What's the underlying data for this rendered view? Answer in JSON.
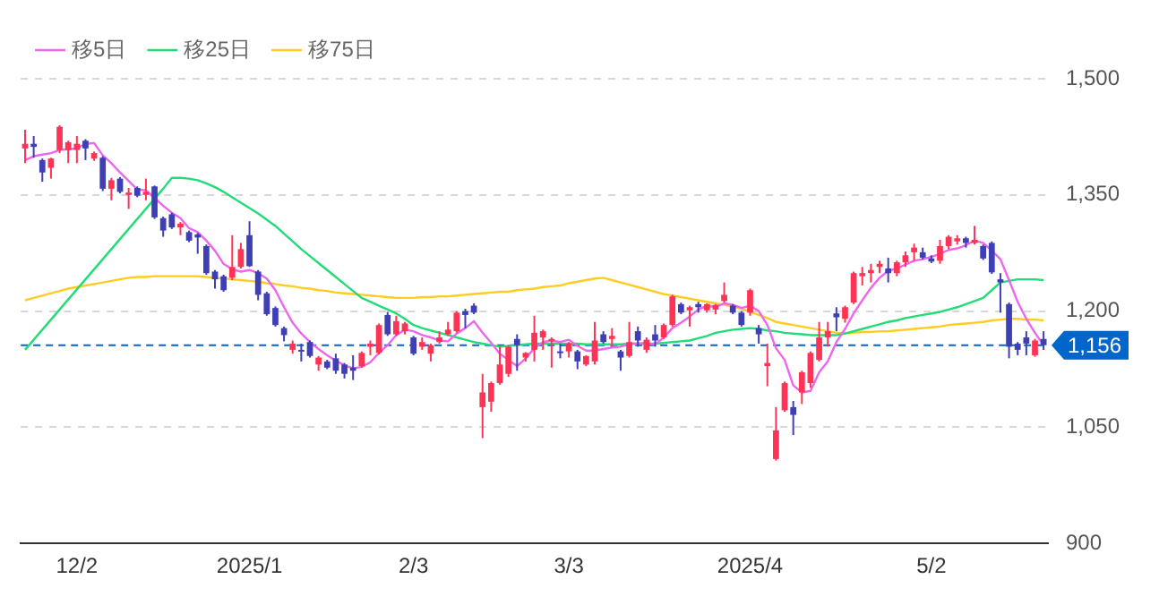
{
  "chart_data": {
    "type": "candlestick",
    "categories": [
      null,
      null,
      null,
      null,
      null,
      null,
      "12/2",
      null,
      null,
      null,
      null,
      null,
      null,
      null,
      null,
      null,
      null,
      null,
      null,
      null,
      null,
      null,
      null,
      null,
      null,
      null,
      "2025/1",
      null,
      null,
      null,
      null,
      null,
      null,
      null,
      null,
      null,
      null,
      null,
      null,
      null,
      null,
      null,
      null,
      null,
      null,
      "2/3",
      null,
      null,
      null,
      null,
      null,
      null,
      null,
      null,
      null,
      null,
      null,
      null,
      null,
      null,
      null,
      null,
      null,
      "3/3",
      null,
      null,
      null,
      null,
      null,
      null,
      null,
      null,
      null,
      null,
      null,
      null,
      null,
      null,
      null,
      null,
      null,
      null,
      null,
      null,
      "2025/4",
      null,
      null,
      null,
      null,
      null,
      null,
      null,
      null,
      null,
      null,
      null,
      null,
      null,
      null,
      null,
      null,
      null,
      null,
      null,
      null,
      "5/2",
      null,
      null,
      null,
      null,
      null,
      null,
      null,
      null,
      null,
      null,
      null,
      null,
      null
    ],
    "ohlc": [
      [
        1410,
        1434,
        1391,
        1416
      ],
      [
        1416,
        1426,
        1398,
        1412
      ],
      [
        1395,
        1397,
        1367,
        1379
      ],
      [
        1385,
        1398,
        1371,
        1397
      ],
      [
        1408,
        1440,
        1404,
        1438
      ],
      [
        1408,
        1420,
        1391,
        1418
      ],
      [
        1408,
        1426,
        1391,
        1416
      ],
      [
        1420,
        1422,
        1395,
        1410
      ],
      [
        1397,
        1406,
        1394,
        1404
      ],
      [
        1398,
        1400,
        1355,
        1358
      ],
      [
        1358,
        1372,
        1343,
        1369
      ],
      [
        1371,
        1373,
        1352,
        1354
      ],
      [
        1350,
        1359,
        1332,
        1353
      ],
      [
        1359,
        1361,
        1347,
        1349
      ],
      [
        1350,
        1371,
        1343,
        1354
      ],
      [
        1361,
        1362,
        1319,
        1321
      ],
      [
        1320,
        1322,
        1296,
        1304
      ],
      [
        1325,
        1327,
        1306,
        1308
      ],
      [
        1308,
        1315,
        1298,
        1313
      ],
      [
        1302,
        1304,
        1289,
        1291
      ],
      [
        1299,
        1301,
        1274,
        1295
      ],
      [
        1284,
        1286,
        1247,
        1249
      ],
      [
        1251,
        1253,
        1229,
        1241
      ],
      [
        1245,
        1247,
        1225,
        1227
      ],
      [
        1243,
        1298,
        1240,
        1257
      ],
      [
        1257,
        1288,
        1255,
        1280
      ],
      [
        1298,
        1316,
        1257,
        1258
      ],
      [
        1251,
        1253,
        1214,
        1221
      ],
      [
        1223,
        1225,
        1194,
        1196
      ],
      [
        1204,
        1206,
        1180,
        1182
      ],
      [
        1178,
        1180,
        1161,
        1169
      ],
      [
        1150,
        1162,
        1145,
        1158
      ],
      [
        1150,
        1158,
        1135,
        1148
      ],
      [
        1160,
        1162,
        1140,
        1142
      ],
      [
        1131,
        1142,
        1123,
        1140
      ],
      [
        1135,
        1137,
        1125,
        1127
      ],
      [
        1139,
        1145,
        1119,
        1123
      ],
      [
        1131,
        1133,
        1113,
        1119
      ],
      [
        1127,
        1143,
        1111,
        1123
      ],
      [
        1129,
        1148,
        1127,
        1146
      ],
      [
        1154,
        1162,
        1143,
        1158
      ],
      [
        1146,
        1184,
        1144,
        1182
      ],
      [
        1195,
        1199,
        1168,
        1170
      ],
      [
        1170,
        1194,
        1168,
        1187
      ],
      [
        1174,
        1186,
        1170,
        1184
      ],
      [
        1166,
        1168,
        1143,
        1145
      ],
      [
        1154,
        1166,
        1150,
        1160
      ],
      [
        1145,
        1158,
        1135,
        1156
      ],
      [
        1160,
        1174,
        1158,
        1166
      ],
      [
        1170,
        1186,
        1168,
        1176
      ],
      [
        1174,
        1200,
        1172,
        1198
      ],
      [
        1200,
        1203,
        1178,
        1195
      ],
      [
        1207,
        1210,
        1196,
        1198
      ],
      [
        1076,
        1119,
        1036,
        1095
      ],
      [
        1083,
        1109,
        1070,
        1107
      ],
      [
        1107,
        1154,
        1105,
        1131
      ],
      [
        1119,
        1156,
        1115,
        1154
      ],
      [
        1164,
        1170,
        1123,
        1156
      ],
      [
        1140,
        1147,
        1135,
        1146
      ],
      [
        1150,
        1194,
        1135,
        1172
      ],
      [
        1166,
        1176,
        1150,
        1174
      ],
      [
        1162,
        1166,
        1127,
        1164
      ],
      [
        1148,
        1158,
        1139,
        1146
      ],
      [
        1148,
        1160,
        1140,
        1158
      ],
      [
        1148,
        1150,
        1125,
        1135
      ],
      [
        1131,
        1143,
        1129,
        1142
      ],
      [
        1135,
        1186,
        1131,
        1162
      ],
      [
        1170,
        1174,
        1158,
        1160
      ],
      [
        1164,
        1178,
        1154,
        1168
      ],
      [
        1148,
        1150,
        1123,
        1140
      ],
      [
        1142,
        1186,
        1140,
        1160
      ],
      [
        1174,
        1180,
        1154,
        1162
      ],
      [
        1150,
        1166,
        1146,
        1163
      ],
      [
        1170,
        1182,
        1154,
        1162
      ],
      [
        1166,
        1184,
        1164,
        1182
      ],
      [
        1182,
        1221,
        1180,
        1219
      ],
      [
        1209,
        1211,
        1196,
        1198
      ],
      [
        1201,
        1207,
        1180,
        1205
      ],
      [
        1209,
        1212,
        1198,
        1205
      ],
      [
        1201,
        1210,
        1198,
        1209
      ],
      [
        1202,
        1209,
        1196,
        1208
      ],
      [
        1213,
        1237,
        1211,
        1221
      ],
      [
        1207,
        1209,
        1196,
        1198
      ],
      [
        1198,
        1200,
        1180,
        1182
      ],
      [
        1198,
        1229,
        1194,
        1227
      ],
      [
        1178,
        1182,
        1158,
        1170
      ],
      [
        1129,
        1158,
        1103,
        1133
      ],
      [
        1009,
        1076,
        1007,
        1046
      ],
      [
        1072,
        1109,
        1070,
        1107
      ],
      [
        1076,
        1084,
        1040,
        1066
      ],
      [
        1095,
        1123,
        1080,
        1121
      ],
      [
        1107,
        1148,
        1101,
        1146
      ],
      [
        1137,
        1186,
        1135,
        1166
      ],
      [
        1166,
        1186,
        1154,
        1174
      ],
      [
        1197,
        1205,
        1174,
        1192
      ],
      [
        1190,
        1207,
        1185,
        1205
      ],
      [
        1211,
        1251,
        1209,
        1249
      ],
      [
        1245,
        1257,
        1233,
        1249
      ],
      [
        1249,
        1261,
        1237,
        1253
      ],
      [
        1257,
        1265,
        1249,
        1261
      ],
      [
        1255,
        1269,
        1237,
        1249
      ],
      [
        1249,
        1265,
        1245,
        1263
      ],
      [
        1263,
        1277,
        1257,
        1272
      ],
      [
        1276,
        1287,
        1265,
        1282
      ],
      [
        1276,
        1282,
        1267,
        1269
      ],
      [
        1268,
        1272,
        1262,
        1264
      ],
      [
        1265,
        1292,
        1261,
        1284
      ],
      [
        1284,
        1298,
        1280,
        1296
      ],
      [
        1290,
        1298,
        1286,
        1294
      ],
      [
        1294,
        1296,
        1282,
        1288
      ],
      [
        1288,
        1310,
        1286,
        1292
      ],
      [
        1284,
        1286,
        1266,
        1268
      ],
      [
        1288,
        1290,
        1248,
        1250
      ],
      [
        1241,
        1249,
        1198,
        1237
      ],
      [
        1209,
        1211,
        1139,
        1154
      ],
      [
        1158,
        1160,
        1143,
        1150
      ],
      [
        1166,
        1174,
        1143,
        1158
      ],
      [
        1143,
        1164,
        1141,
        1162
      ],
      [
        1164,
        1174,
        1150,
        1156
      ]
    ],
    "colors": [
      "#ff3355",
      "#3f3fb5",
      "#3f3fb5",
      "#ff3355",
      "#ff3355",
      "#ff3355",
      "#ff3355",
      "#3f3fb5",
      "#ff3355",
      "#3f3fb5",
      "#ff3355",
      "#3f3fb5",
      "#ff3355",
      "#3f3fb5",
      "#ff3355",
      "#3f3fb5",
      "#3f3fb5",
      "#3f3fb5",
      "#ff3355",
      "#3f3fb5",
      "#3f3fb5",
      "#3f3fb5",
      "#3f3fb5",
      "#3f3fb5",
      "#ff3355",
      "#ff3355",
      "#3f3fb5",
      "#3f3fb5",
      "#3f3fb5",
      "#3f3fb5",
      "#3f3fb5",
      "#ff3355",
      "#3f3fb5",
      "#3f3fb5",
      "#ff3355",
      "#3f3fb5",
      "#3f3fb5",
      "#3f3fb5",
      "#3f3fb5",
      "#ff3355",
      "#ff3355",
      "#ff3355",
      "#3f3fb5",
      "#ff3355",
      "#ff3355",
      "#3f3fb5",
      "#ff3355",
      "#ff3355",
      "#ff3355",
      "#ff3355",
      "#ff3355",
      "#3f3fb5",
      "#3f3fb5",
      "#ff3355",
      "#ff3355",
      "#ff3355",
      "#ff3355",
      "#3f3fb5",
      "#ff3355",
      "#ff3355",
      "#ff3355",
      "#ff3355",
      "#3f3fb5",
      "#ff3355",
      "#3f3fb5",
      "#ff3355",
      "#ff3355",
      "#3f3fb5",
      "#ff3355",
      "#3f3fb5",
      "#ff3355",
      "#3f3fb5",
      "#ff3355",
      "#3f3fb5",
      "#ff3355",
      "#ff3355",
      "#3f3fb5",
      "#ff3355",
      "#3f3fb5",
      "#ff3355",
      "#ff3355",
      "#ff3355",
      "#3f3fb5",
      "#3f3fb5",
      "#ff3355",
      "#3f3fb5",
      "#ff3355",
      "#ff3355",
      "#ff3355",
      "#3f3fb5",
      "#ff3355",
      "#ff3355",
      "#ff3355",
      "#ff3355",
      "#3f3fb5",
      "#ff3355",
      "#ff3355",
      "#ff3355",
      "#ff3355",
      "#ff3355",
      "#3f3fb5",
      "#ff3355",
      "#ff3355",
      "#ff3355",
      "#3f3fb5",
      "#3f3fb5",
      "#ff3355",
      "#ff3355",
      "#ff3355",
      "#3f3fb5",
      "#ff3355",
      "#3f3fb5",
      "#3f3fb5",
      "#3f3fb5",
      "#3f3fb5",
      "#3f3fb5",
      "#3f3fb5",
      "#ff3355",
      "#3f3fb5"
    ],
    "series": [
      {
        "type": "line",
        "name": "移5日",
        "color": "#ee66ee",
        "values": [
          1395,
          1400,
          1402,
          1404,
          1408,
          1409,
          1410,
          1416,
          1417,
          1401,
          1391,
          1379,
          1368,
          1357,
          1356,
          1346,
          1336,
          1327,
          1320,
          1307,
          1302,
          1291,
          1278,
          1261,
          1254,
          1251,
          1253,
          1249,
          1242,
          1227,
          1205,
          1185,
          1171,
          1160,
          1151,
          1143,
          1136,
          1130,
          1126,
          1128,
          1134,
          1146,
          1156,
          1169,
          1176,
          1174,
          1169,
          1166,
          1162,
          1161,
          1171,
          1178,
          1187,
          1172,
          1159,
          1145,
          1137,
          1129,
          1139,
          1152,
          1160,
          1162,
          1160,
          1163,
          1155,
          1149,
          1149,
          1151,
          1153,
          1154,
          1158,
          1158,
          1159,
          1157,
          1166,
          1178,
          1185,
          1193,
          1202,
          1207,
          1205,
          1210,
          1208,
          1204,
          1207,
          1200,
          1182,
          1152,
          1137,
          1104,
          1095,
          1097,
          1121,
          1135,
          1160,
          1177,
          1197,
          1214,
          1230,
          1243,
          1252,
          1255,
          1260,
          1265,
          1267,
          1270,
          1274,
          1279,
          1281,
          1285,
          1291,
          1288,
          1278,
          1267,
          1240,
          1212,
          1190,
          1172,
          1156
        ]
      },
      {
        "type": "line",
        "name": "移25日",
        "color": "#22dd77",
        "values": [
          1150,
          1163,
          1176,
          1189,
          1202,
          1215,
          1228,
          1241,
          1254,
          1267,
          1280,
          1293,
          1306,
          1319,
          1332,
          1345,
          1358,
          1372,
          1372,
          1371,
          1369,
          1365,
          1360,
          1354,
          1347,
          1340,
          1333,
          1326,
          1318,
          1310,
          1300,
          1290,
          1280,
          1271,
          1262,
          1253,
          1244,
          1235,
          1226,
          1217,
          1212,
          1207,
          1202,
          1197,
          1190,
          1182,
          1178,
          1175,
          1172,
          1169,
          1166,
          1163,
          1160,
          1158,
          1156,
          1154,
          1155,
          1156,
          1157,
          1158,
          1158,
          1158,
          1158,
          1158,
          1158,
          1157,
          1157,
          1157,
          1157,
          1157,
          1158,
          1158,
          1158,
          1158,
          1159,
          1160,
          1161,
          1162,
          1165,
          1168,
          1172,
          1174,
          1176,
          1177,
          1178,
          1177,
          1175,
          1174,
          1172,
          1171,
          1170,
          1169,
          1169,
          1169,
          1169,
          1171,
          1174,
          1177,
          1180,
          1183,
          1186,
          1188,
          1191,
          1193,
          1195,
          1197,
          1199,
          1202,
          1205,
          1209,
          1213,
          1217,
          1227,
          1237,
          1239,
          1241,
          1241,
          1241,
          1240
        ]
      },
      {
        "type": "line",
        "name": "移75日",
        "color": "#ffcc22",
        "values": [
          1214,
          1217,
          1220,
          1223,
          1226,
          1229,
          1231,
          1233,
          1235,
          1237,
          1239,
          1241,
          1243,
          1244,
          1244,
          1245,
          1245,
          1245,
          1245,
          1245,
          1245,
          1244,
          1243,
          1242,
          1241,
          1240,
          1239,
          1238,
          1236,
          1235,
          1233,
          1232,
          1230,
          1229,
          1227,
          1226,
          1224,
          1223,
          1222,
          1221,
          1220,
          1219,
          1218,
          1217,
          1217,
          1217,
          1218,
          1218,
          1219,
          1219,
          1220,
          1221,
          1222,
          1223,
          1224,
          1225,
          1225,
          1227,
          1228,
          1229,
          1231,
          1232,
          1233,
          1236,
          1238,
          1240,
          1242,
          1243,
          1240,
          1237,
          1234,
          1231,
          1228,
          1225,
          1222,
          1220,
          1218,
          1216,
          1214,
          1212,
          1210,
          1208,
          1206,
          1203,
          1199,
          1195,
          1191,
          1186,
          1184,
          1182,
          1180,
          1178,
          1176,
          1174,
          1172,
          1172,
          1172,
          1173,
          1173,
          1174,
          1174,
          1175,
          1176,
          1177,
          1178,
          1179,
          1180,
          1182,
          1183,
          1184,
          1185,
          1186,
          1188,
          1189,
          1190,
          1190,
          1189,
          1189,
          1188
        ]
      }
    ],
    "ylim": [
      900,
      1500
    ],
    "yticks": [
      {
        "value": 900,
        "label": "900"
      },
      {
        "value": 1050,
        "label": "1,050"
      },
      {
        "value": 1200,
        "label": "1,200"
      },
      {
        "value": 1350,
        "label": "1,350"
      },
      {
        "value": 1500,
        "label": "1,500"
      }
    ],
    "ref_lines": [
      {
        "axis": "y",
        "value": 1156,
        "label": "1,156",
        "color": "#0066cc",
        "line_style": "dashed"
      }
    ],
    "grid": "y",
    "legend": "top left",
    "marker": "none",
    "line_style": "solid"
  }
}
